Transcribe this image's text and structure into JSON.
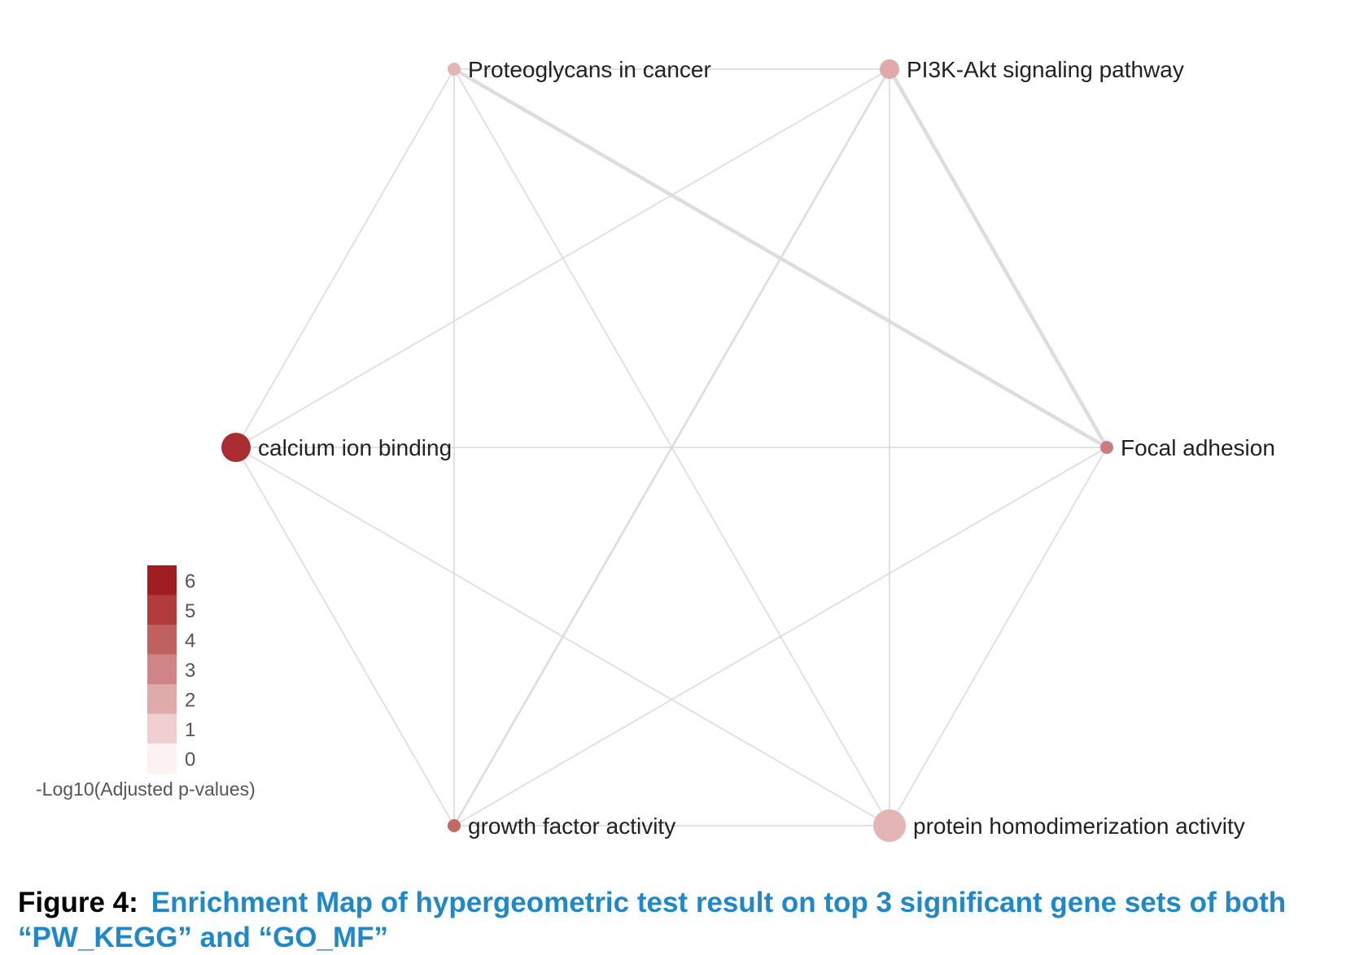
{
  "network": {
    "nodes": [
      {
        "id": "proteoglycans",
        "label": "Proteoglycans in cancer",
        "neglog10_padj": 1.7,
        "size": "small"
      },
      {
        "id": "pi3k",
        "label": "PI3K-Akt signaling pathway",
        "neglog10_padj": 2.0,
        "size": "medium"
      },
      {
        "id": "calcium",
        "label": "calcium ion binding",
        "neglog10_padj": 5.5,
        "size": "large"
      },
      {
        "id": "focal",
        "label": "Focal adhesion",
        "neglog10_padj": 3.2,
        "size": "small"
      },
      {
        "id": "growth",
        "label": "growth factor activity",
        "neglog10_padj": 3.8,
        "size": "small"
      },
      {
        "id": "homodimer",
        "label": "protein homodimerization activity",
        "neglog10_padj": 1.7,
        "size": "x-large"
      }
    ],
    "edges": [
      {
        "source": "proteoglycans",
        "target": "pi3k",
        "weight": "thin"
      },
      {
        "source": "proteoglycans",
        "target": "calcium",
        "weight": "thin"
      },
      {
        "source": "proteoglycans",
        "target": "focal",
        "weight": "thick"
      },
      {
        "source": "proteoglycans",
        "target": "growth",
        "weight": "thin"
      },
      {
        "source": "proteoglycans",
        "target": "homodimer",
        "weight": "thin"
      },
      {
        "source": "pi3k",
        "target": "calcium",
        "weight": "thin"
      },
      {
        "source": "pi3k",
        "target": "focal",
        "weight": "thick"
      },
      {
        "source": "pi3k",
        "target": "growth",
        "weight": "medium"
      },
      {
        "source": "pi3k",
        "target": "homodimer",
        "weight": "thin"
      },
      {
        "source": "calcium",
        "target": "focal",
        "weight": "thin"
      },
      {
        "source": "calcium",
        "target": "growth",
        "weight": "thin"
      },
      {
        "source": "calcium",
        "target": "homodimer",
        "weight": "thin"
      },
      {
        "source": "focal",
        "target": "growth",
        "weight": "thin"
      },
      {
        "source": "focal",
        "target": "homodimer",
        "weight": "thin"
      },
      {
        "source": "growth",
        "target": "homodimer",
        "weight": "thin"
      }
    ]
  },
  "legend": {
    "title": "-Log10(Adjusted p-values)",
    "ticks": [
      "6",
      "5",
      "4",
      "3",
      "2",
      "1",
      "0"
    ],
    "colors": [
      "#a01e22",
      "#b23b3e",
      "#c0605f",
      "#cf8585",
      "#deaaaa",
      "#efcfcf",
      "#fdf2f2"
    ]
  },
  "caption": {
    "figure_label": "Figure 4:",
    "text": "Enrichment Map of hypergeometric test result on top 3 significant gene sets of both “PW_KEGG” and “GO_MF”"
  },
  "colors": {
    "edge": "#d9d9d9",
    "label": "#222222",
    "caption_text": "#1e88c8"
  }
}
